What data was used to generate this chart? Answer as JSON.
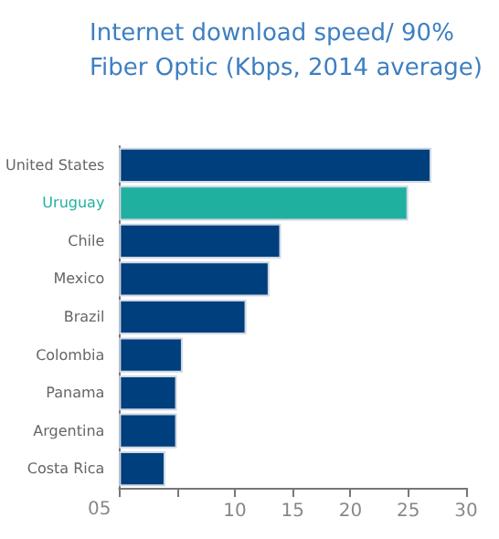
{
  "chart_data": {
    "type": "bar",
    "orientation": "horizontal",
    "title": "Internet download speed/ 90%\nFiber Optic (Kbps, 2014 average)",
    "categories": [
      "United States",
      "Uruguay",
      "Chile",
      "Mexico",
      "Brazil",
      "Colombia",
      "Panama",
      "Argentina",
      "Costa Rica"
    ],
    "values": [
      27,
      25,
      14,
      13,
      11,
      5.5,
      5,
      5,
      4
    ],
    "colors": [
      "#003f7d",
      "#20b0a0",
      "#003f7d",
      "#003f7d",
      "#003f7d",
      "#003f7d",
      "#003f7d",
      "#003f7d",
      "#003f7d"
    ],
    "xlim": [
      0,
      30
    ],
    "xticks": [
      {
        "value": 0,
        "label": null
      },
      {
        "value": 5,
        "label": null
      },
      10,
      15,
      20,
      25,
      30
    ],
    "annotations": [
      "05"
    ],
    "grid": false
  }
}
